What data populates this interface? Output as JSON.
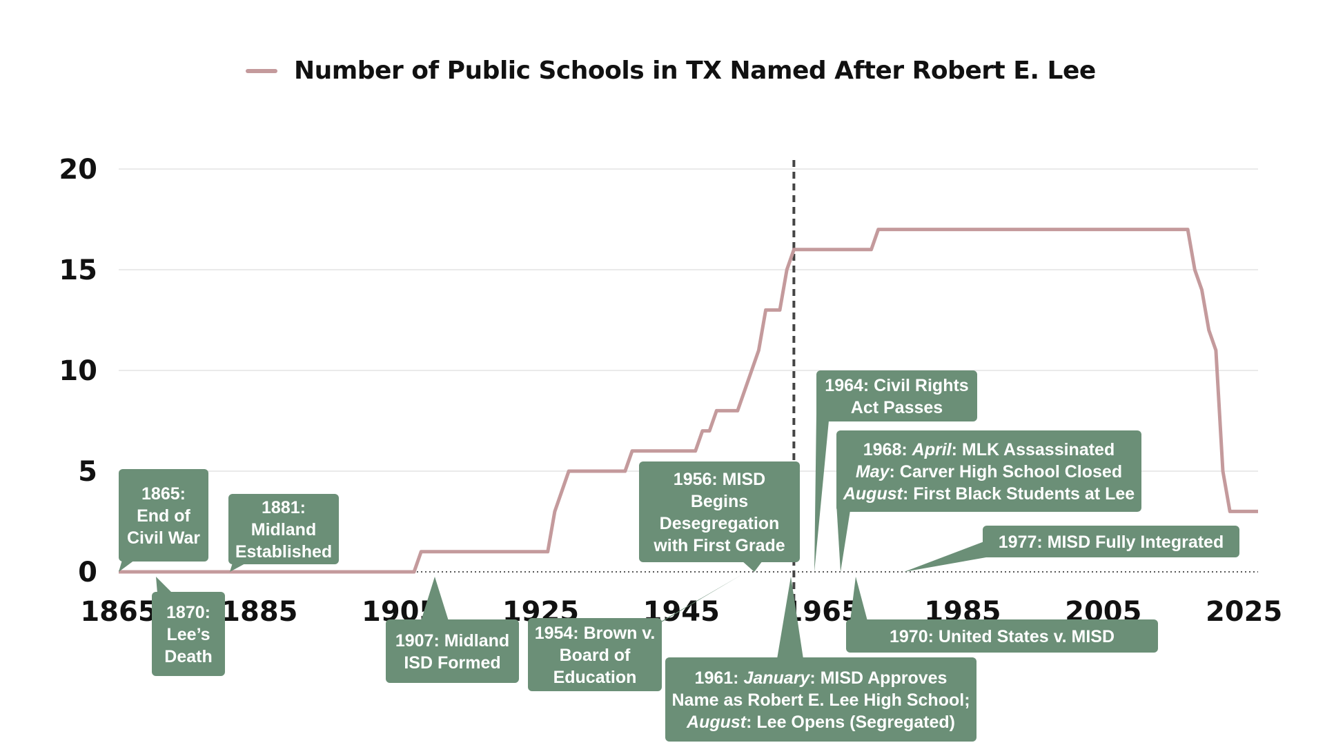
{
  "chart_data": {
    "type": "line",
    "series": [
      {
        "name": "Number of Public Schools in TX Named After Robert E. Lee",
        "color": "#c49a9c",
        "points": [
          [
            1865,
            0
          ],
          [
            1907,
            0
          ],
          [
            1908,
            1
          ],
          [
            1926,
            1
          ],
          [
            1927,
            3
          ],
          [
            1929,
            5
          ],
          [
            1937,
            5
          ],
          [
            1938,
            6
          ],
          [
            1947,
            6
          ],
          [
            1948,
            7
          ],
          [
            1949,
            7
          ],
          [
            1950,
            8
          ],
          [
            1953,
            8
          ],
          [
            1956,
            11
          ],
          [
            1957,
            13
          ],
          [
            1959,
            13
          ],
          [
            1960,
            15
          ],
          [
            1961,
            16
          ],
          [
            1972,
            16
          ],
          [
            1973,
            17
          ],
          [
            2017,
            17
          ],
          [
            2018,
            15
          ],
          [
            2019,
            14
          ],
          [
            2020,
            12
          ],
          [
            2021,
            11
          ],
          [
            2022,
            5
          ],
          [
            2023,
            3
          ],
          [
            2027,
            3
          ]
        ]
      }
    ],
    "xlim": [
      1865,
      2027
    ],
    "ylim": [
      0,
      20
    ],
    "x_ticks": [
      "1865",
      "1885",
      "1905",
      "1925",
      "1945",
      "1965",
      "1985",
      "2005",
      "2025"
    ],
    "y_ticks": [
      "0",
      "5",
      "10",
      "15",
      "20"
    ],
    "grid": true,
    "legend_position": "top",
    "marker_line": {
      "x": 1961,
      "style": "dashed"
    },
    "annotation_color": "#6b8f77",
    "annotations": [
      {
        "year": 1865,
        "lines": [
          "1865:",
          "End of",
          "Civil War"
        ]
      },
      {
        "year": 1870,
        "lines": [
          "1870:",
          "Lee’s",
          "Death"
        ]
      },
      {
        "year": 1881,
        "lines": [
          "1881:",
          "Midland",
          "Established"
        ]
      },
      {
        "year": 1907,
        "lines": [
          "1907: Midland",
          "ISD Formed"
        ]
      },
      {
        "year": 1954,
        "lines": [
          "1954: Brown v.",
          "Board of",
          "Education"
        ]
      },
      {
        "year": 1956,
        "lines": [
          "1956: MISD",
          "Begins",
          "Desegregation",
          "with First Grade"
        ]
      },
      {
        "year": 1961,
        "lines": [
          "1961: |January|: MISD Approves",
          "Name as Robert E. Lee High School;",
          "|August|: Lee Opens (Segregated)"
        ]
      },
      {
        "year": 1964,
        "lines": [
          "1964: Civil Rights",
          "Act Passes"
        ]
      },
      {
        "year": 1968,
        "lines": [
          "1968: |April|: MLK Assassinated",
          "|May|: Carver High School Closed",
          "|August|: First Black Students at Lee"
        ]
      },
      {
        "year": 1970,
        "lines": [
          "1970: United States v. MISD"
        ]
      },
      {
        "year": 1977,
        "lines": [
          "1977: MISD Fully Integrated"
        ]
      }
    ]
  }
}
